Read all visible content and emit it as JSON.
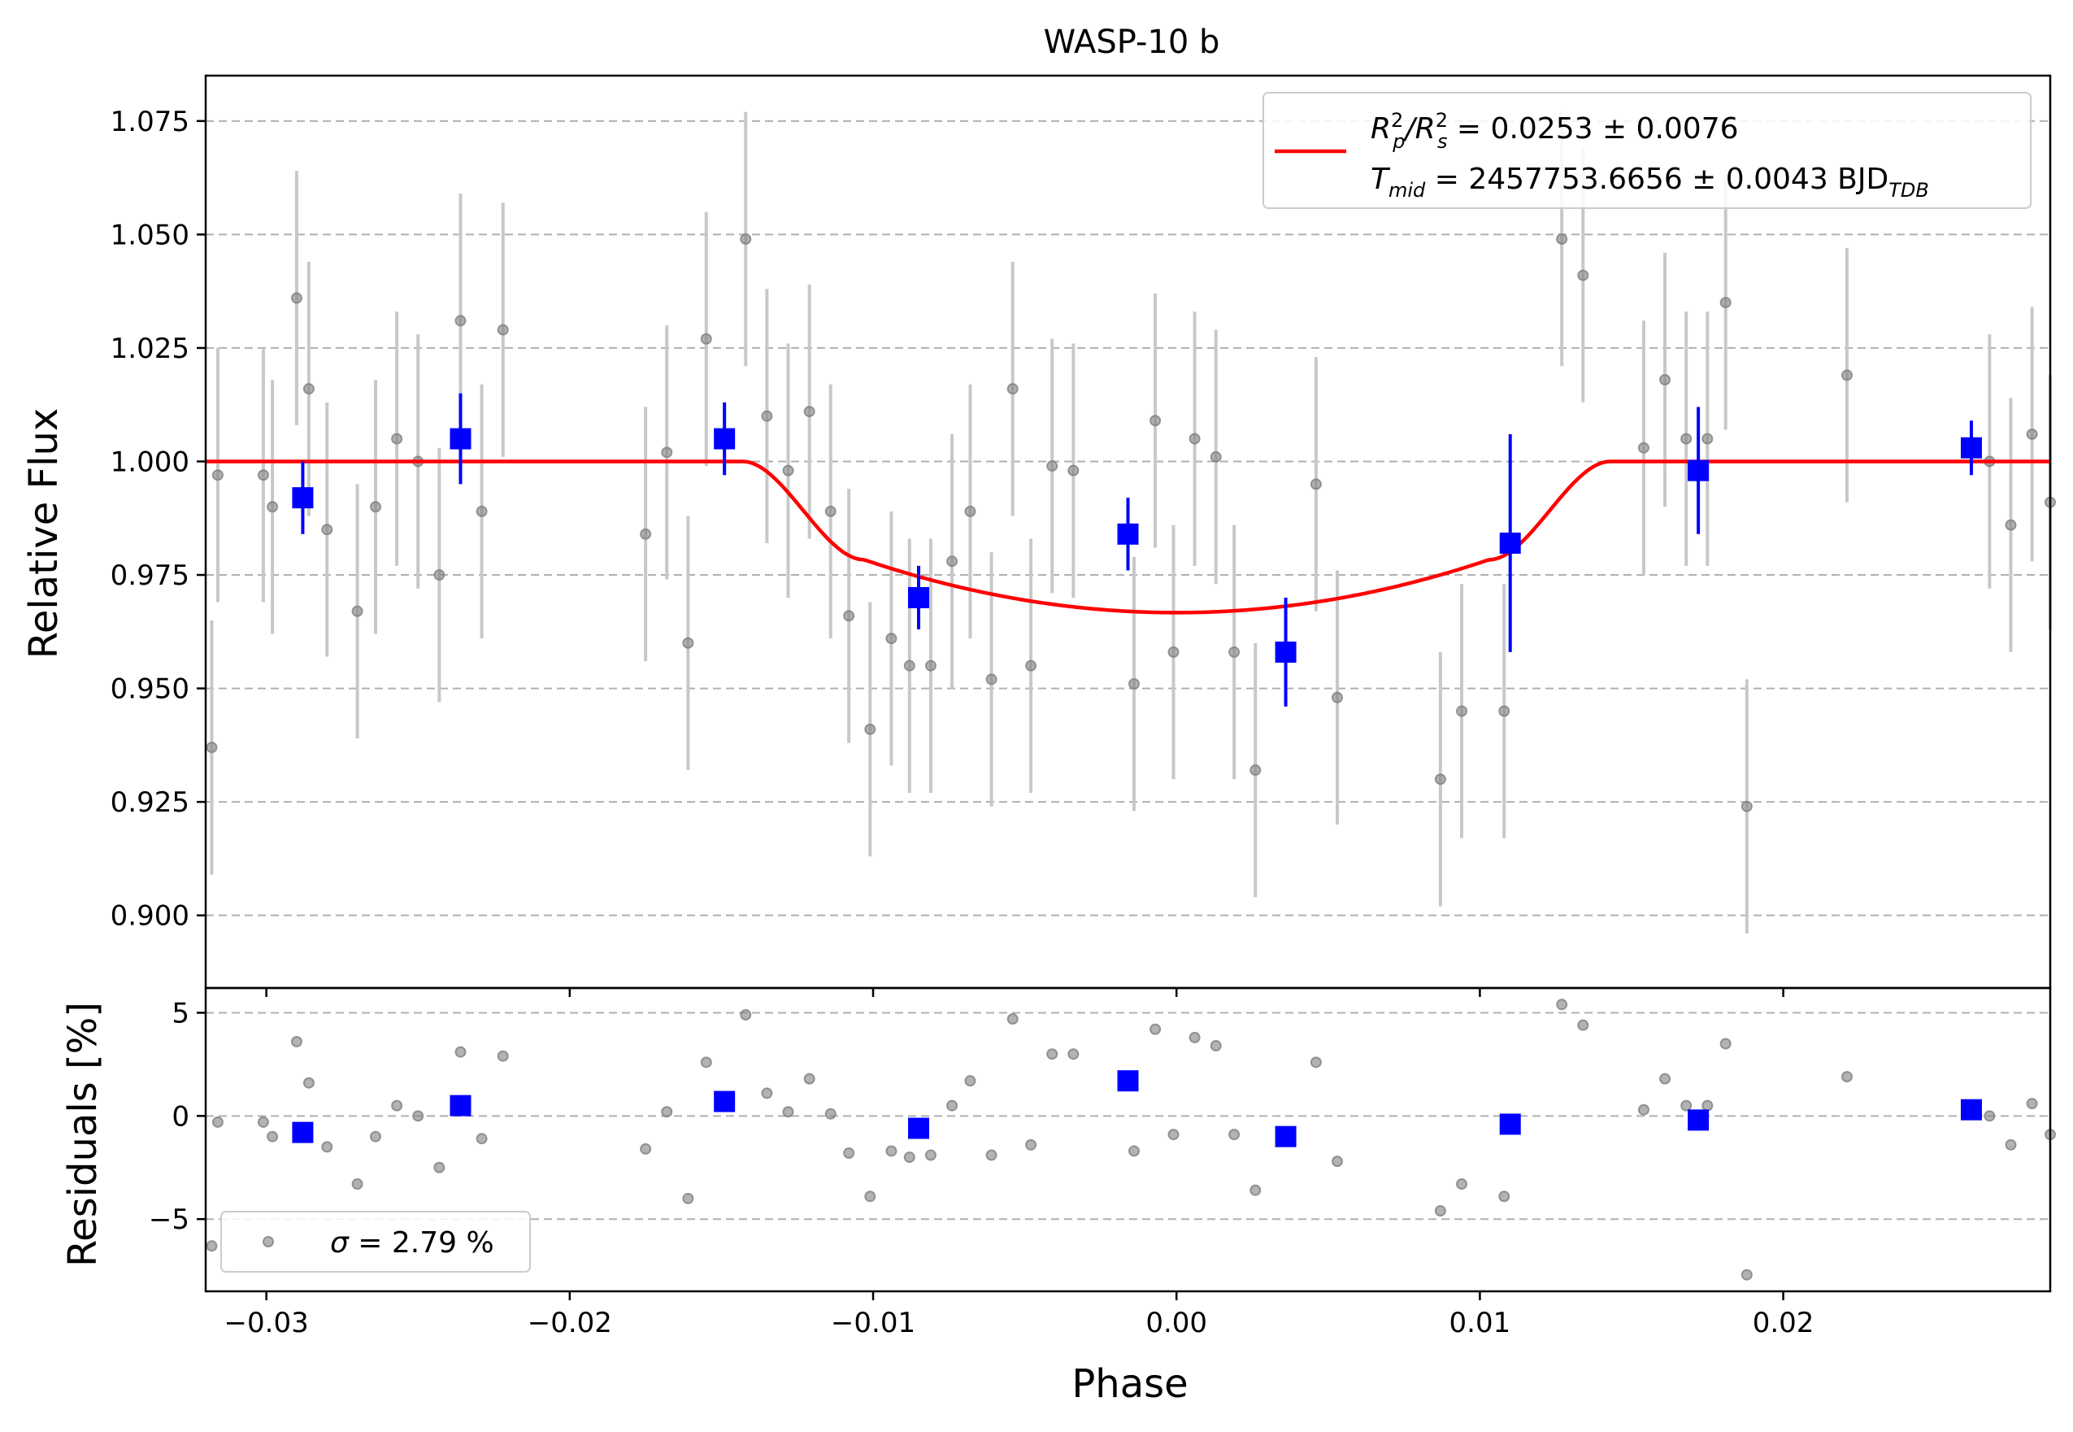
{
  "chart_data": [
    {
      "type": "scatter",
      "title": "WASP-10 b",
      "xlabel": "",
      "ylabel": "Relative Flux",
      "xlim": [
        -0.032,
        0.0288
      ],
      "ylim": [
        0.884,
        1.085
      ],
      "grid": "horizontal dashed",
      "legend_position": "top-right",
      "x_ticks": [
        -0.03,
        -0.02,
        -0.01,
        0.0,
        0.01,
        0.02
      ],
      "x_tick_labels": [
        "−0.03",
        "−0.02",
        "−0.01",
        "0.00",
        "0.01",
        "0.02"
      ],
      "y_ticks": [
        0.9,
        0.925,
        0.95,
        0.975,
        1.0,
        1.025,
        1.05,
        1.075
      ],
      "y_tick_labels": [
        "0.900",
        "0.925",
        "0.950",
        "0.975",
        "1.000",
        "1.025",
        "1.050",
        "1.075"
      ],
      "legend": {
        "line1_main": "R",
        "line1_sup1": "2",
        "line1_sub1": "p",
        "line1_mid": "/R",
        "line1_sup2": "2",
        "line1_sub2": "s",
        "line1_value": " = 0.0253 ± 0.0076",
        "line2_main": "T",
        "line2_sub": "mid",
        "line2_value": " = 2457753.6656 ± 0.0043 BJD",
        "line2_unit_sub": "TDB"
      },
      "colors": {
        "raw": "#808080",
        "raw_err": "#c8c8c8",
        "binned": "#0000ff",
        "model": "#ff0000"
      },
      "model": {
        "name": "",
        "baseline": 1.0,
        "depth": 0.0333,
        "ingress_start": -0.0143,
        "ingress_end": -0.0103,
        "egress_start": 0.0103,
        "egress_end": 0.0143
      },
      "raw_points": {
        "x": [
          -0.0318,
          -0.0316,
          -0.0301,
          -0.0298,
          -0.029,
          -0.0286,
          -0.028,
          -0.027,
          -0.0264,
          -0.0257,
          -0.025,
          -0.0243,
          -0.0236,
          -0.0229,
          -0.0222,
          -0.0175,
          -0.0168,
          -0.0161,
          -0.0155,
          -0.0142,
          -0.0135,
          -0.0128,
          -0.0121,
          -0.0114,
          -0.0108,
          -0.0101,
          -0.0094,
          -0.0088,
          -0.0081,
          -0.0074,
          -0.0068,
          -0.0061,
          -0.0054,
          -0.0048,
          -0.0041,
          -0.0034,
          -0.0014,
          -0.0007,
          -0.0001,
          0.0006,
          0.0013,
          0.0019,
          0.0026,
          0.0046,
          0.0053,
          0.0087,
          0.0094,
          0.0108,
          0.0127,
          0.0134,
          0.0154,
          0.0161,
          0.0168,
          0.0175,
          0.0181,
          0.0188,
          0.0221,
          0.0268,
          0.0275,
          0.0282,
          0.0288
        ],
        "y": [
          0.937,
          0.997,
          0.997,
          0.99,
          1.036,
          1.016,
          0.985,
          0.967,
          0.99,
          1.005,
          1.0,
          0.975,
          1.031,
          0.989,
          1.029,
          0.984,
          1.002,
          0.96,
          1.027,
          1.049,
          1.01,
          0.998,
          1.011,
          0.989,
          0.966,
          0.941,
          0.961,
          0.955,
          0.955,
          0.978,
          0.989,
          0.952,
          1.016,
          0.955,
          0.999,
          0.998,
          0.951,
          1.009,
          0.958,
          1.005,
          1.001,
          0.958,
          0.932,
          0.995,
          0.948,
          0.93,
          0.945,
          0.945,
          1.049,
          1.041,
          1.003,
          1.018,
          1.005,
          1.005,
          1.035,
          0.924,
          1.019,
          1.0,
          0.986,
          1.006,
          0.991
        ],
        "err": [
          0.028,
          0.028,
          0.028,
          0.028,
          0.028,
          0.028,
          0.028,
          0.028,
          0.028,
          0.028,
          0.028,
          0.028,
          0.028,
          0.028,
          0.028,
          0.028,
          0.028,
          0.028,
          0.028,
          0.028,
          0.028,
          0.028,
          0.028,
          0.028,
          0.028,
          0.028,
          0.028,
          0.028,
          0.028,
          0.028,
          0.028,
          0.028,
          0.028,
          0.028,
          0.028,
          0.028,
          0.028,
          0.028,
          0.028,
          0.028,
          0.028,
          0.028,
          0.028,
          0.028,
          0.028,
          0.028,
          0.028,
          0.028,
          0.028,
          0.028,
          0.028,
          0.028,
          0.028,
          0.028,
          0.028,
          0.028,
          0.028,
          0.028,
          0.028,
          0.028,
          0.028
        ]
      },
      "binned_points": {
        "x": [
          -0.0288,
          -0.0236,
          -0.0149,
          -0.0085,
          -0.0016,
          0.0036,
          0.011,
          0.0172,
          0.0262
        ],
        "y": [
          0.992,
          1.005,
          1.005,
          0.97,
          0.984,
          0.958,
          0.982,
          0.998,
          1.003
        ],
        "err": [
          0.008,
          0.01,
          0.008,
          0.007,
          0.008,
          0.012,
          0.024,
          0.014,
          0.006
        ]
      }
    },
    {
      "type": "scatter",
      "title": "",
      "xlabel": "Phase",
      "ylabel": "Residuals [%]",
      "xlim": [
        -0.032,
        0.0288
      ],
      "ylim": [
        -8.5,
        6.2
      ],
      "grid": "horizontal dashed",
      "legend_position": "bottom-left",
      "x_ticks": [
        -0.03,
        -0.02,
        -0.01,
        0.0,
        0.01,
        0.02
      ],
      "x_tick_labels": [
        "−0.03",
        "−0.02",
        "−0.01",
        "0.00",
        "0.01",
        "0.02"
      ],
      "y_ticks": [
        -5,
        0,
        5
      ],
      "y_tick_labels": [
        "−5",
        "0",
        "5"
      ],
      "legend": {
        "label_symbol": "σ",
        "label_value": " = 2.79 %"
      },
      "raw_points": {
        "x": [
          -0.0318,
          -0.0316,
          -0.0301,
          -0.0298,
          -0.029,
          -0.0286,
          -0.028,
          -0.027,
          -0.0264,
          -0.0257,
          -0.025,
          -0.0243,
          -0.0236,
          -0.0229,
          -0.0222,
          -0.0175,
          -0.0168,
          -0.0161,
          -0.0155,
          -0.0142,
          -0.0135,
          -0.0128,
          -0.0121,
          -0.0114,
          -0.0108,
          -0.0101,
          -0.0094,
          -0.0088,
          -0.0081,
          -0.0074,
          -0.0068,
          -0.0061,
          -0.0054,
          -0.0048,
          -0.0041,
          -0.0034,
          -0.0014,
          -0.0007,
          -0.0001,
          0.0006,
          0.0013,
          0.0019,
          0.0026,
          0.0046,
          0.0053,
          0.0087,
          0.0094,
          0.0108,
          0.0127,
          0.0134,
          0.0154,
          0.0161,
          0.0168,
          0.0175,
          0.0181,
          0.0188,
          0.0221,
          0.0268,
          0.0275,
          0.0282,
          0.0288
        ],
        "y": [
          -6.3,
          -0.3,
          -0.3,
          -1.0,
          3.6,
          1.6,
          -1.5,
          -3.3,
          -1.0,
          0.5,
          0.0,
          -2.5,
          3.1,
          -1.1,
          2.9,
          -1.6,
          0.2,
          -4.0,
          2.6,
          4.9,
          1.1,
          0.2,
          1.8,
          0.1,
          -1.8,
          -3.9,
          -1.7,
          -2.0,
          -1.9,
          0.5,
          1.7,
          -1.9,
          4.7,
          -1.4,
          3.0,
          3.0,
          -1.7,
          4.2,
          -0.9,
          3.8,
          3.4,
          -0.9,
          -3.6,
          2.6,
          -2.2,
          -4.6,
          -3.3,
          -3.9,
          5.4,
          4.4,
          0.3,
          1.8,
          0.5,
          0.5,
          3.5,
          -7.7,
          1.9,
          0.0,
          -1.4,
          0.6,
          -0.9
        ]
      },
      "binned_points": {
        "x": [
          -0.0288,
          -0.0236,
          -0.0149,
          -0.0085,
          -0.0016,
          0.0036,
          0.011,
          0.0172,
          0.0262
        ],
        "y": [
          -0.8,
          0.5,
          0.7,
          -0.6,
          1.7,
          -1.0,
          -0.4,
          -0.2,
          0.3
        ]
      }
    }
  ]
}
